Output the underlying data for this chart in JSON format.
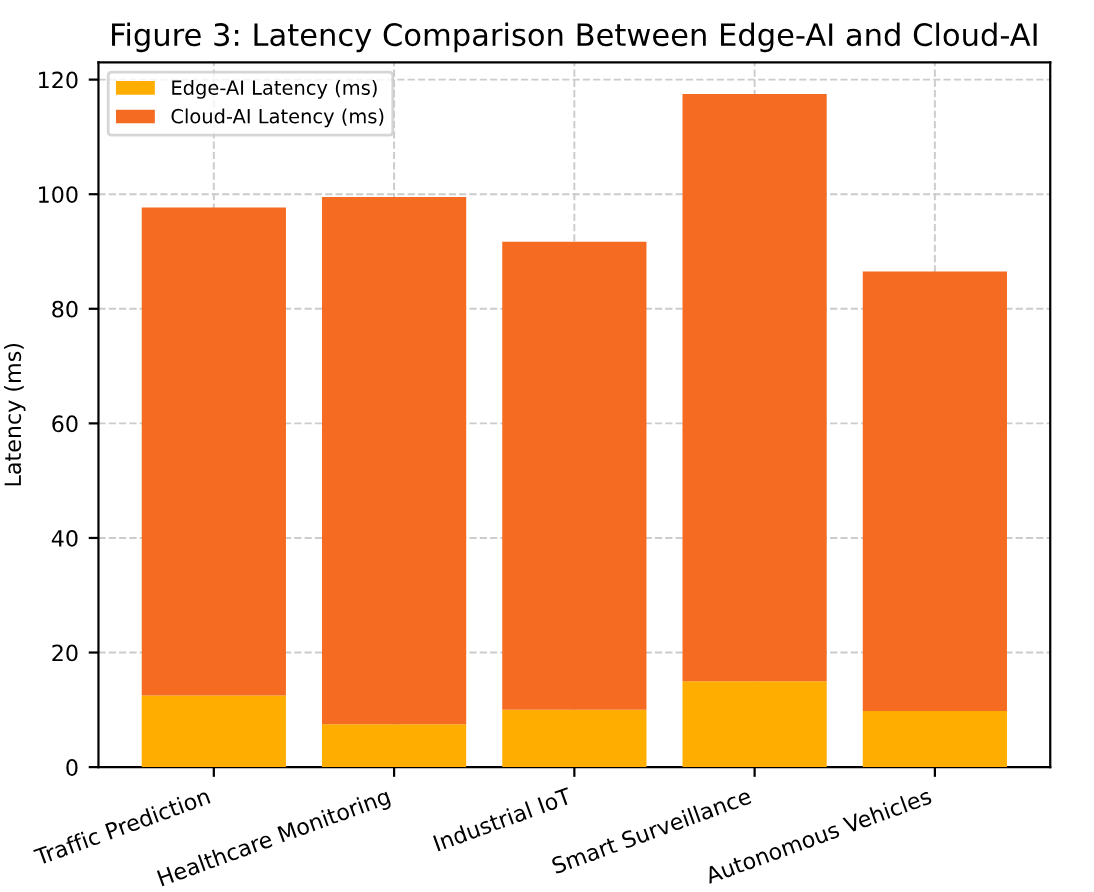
{
  "chart_data": {
    "type": "bar",
    "title": "Figure 3: Latency Comparison Between Edge-AI and Cloud-AI",
    "ylabel": "Latency (ms)",
    "categories": [
      "Traffic Prediction",
      "Healthcare Monitoring",
      "Industrial IoT",
      "Smart Surveillance",
      "Autonomous Vehicles"
    ],
    "stacked": true,
    "series": [
      {
        "name": "Edge-AI Latency (ms)",
        "color": "#ffae00",
        "values": [
          12.5,
          7.5,
          10,
          15,
          9.8
        ]
      },
      {
        "name": "Cloud-AI Latency (ms)",
        "color": "#f46b21",
        "values": [
          85.2,
          92,
          81.7,
          102.5,
          76.7
        ]
      }
    ],
    "ylim": [
      0,
      123
    ],
    "yticks": [
      0,
      20,
      40,
      60,
      80,
      100,
      120
    ],
    "grid": true,
    "legend": "top left"
  }
}
